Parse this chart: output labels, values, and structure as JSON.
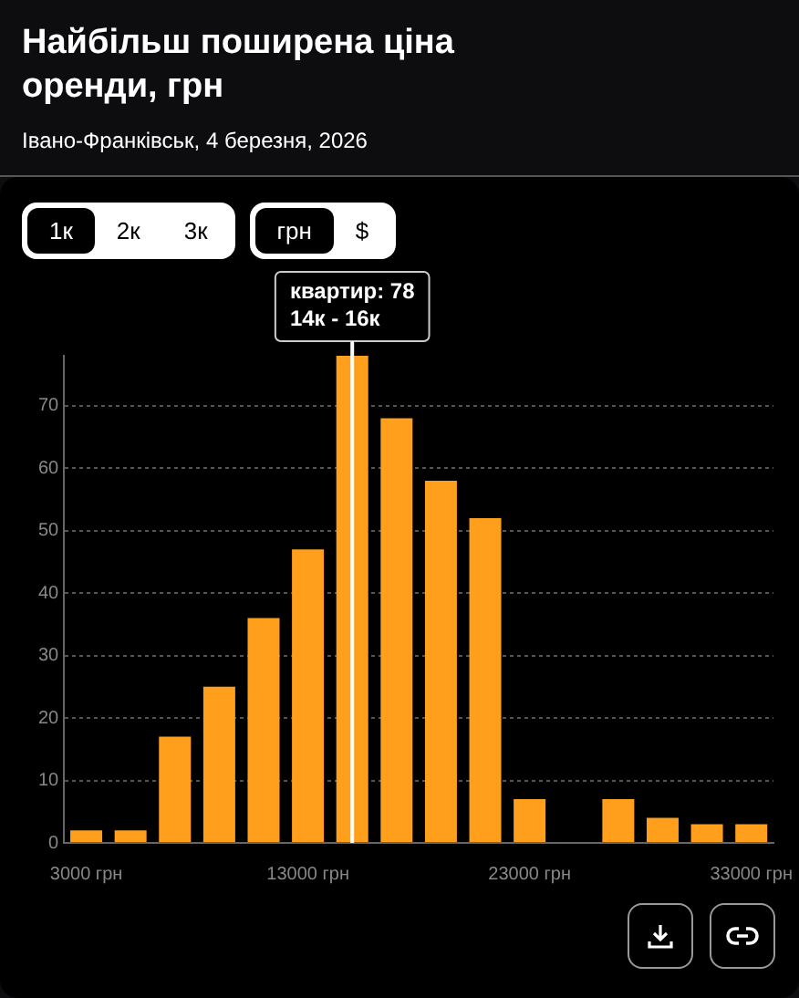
{
  "chart_data": {
    "type": "histogram",
    "title": "Найбільш поширена ціна оренди, грн",
    "subtitle": "Івано-Франківськ, 4 березня, 2026",
    "bins": [
      2000,
      4000,
      6000,
      8000,
      10000,
      12000,
      14000,
      16000,
      18000,
      20000,
      22000,
      24000,
      26000,
      28000,
      30000,
      32000,
      34000
    ],
    "values": [
      2,
      2,
      17,
      25,
      36,
      47,
      78,
      68,
      58,
      52,
      7,
      0,
      7,
      4,
      3,
      3
    ],
    "color": "#ff9f1c",
    "xlim": [
      2000,
      34000
    ],
    "xticks": [
      {
        "value": 3000,
        "label": "3000 грн"
      },
      {
        "value": 13000,
        "label": "13000 грн"
      },
      {
        "value": 23000,
        "label": "23000 грн"
      },
      {
        "value": 33000,
        "label": "33000 грн"
      }
    ],
    "ylim": [
      0,
      78
    ],
    "yticks": [
      0,
      10,
      20,
      30,
      40,
      50,
      60,
      70
    ],
    "grid": "y",
    "legend": false,
    "ref_lines": [
      {
        "axis": "x",
        "value": 15000,
        "color": "#ffffff"
      }
    ],
    "annotations": [
      "1к",
      "2к",
      "3к",
      "грн",
      "$",
      {
        "text": "квартир: 78\n14к - 16к",
        "x": 15000,
        "y": 78
      }
    ]
  }
}
